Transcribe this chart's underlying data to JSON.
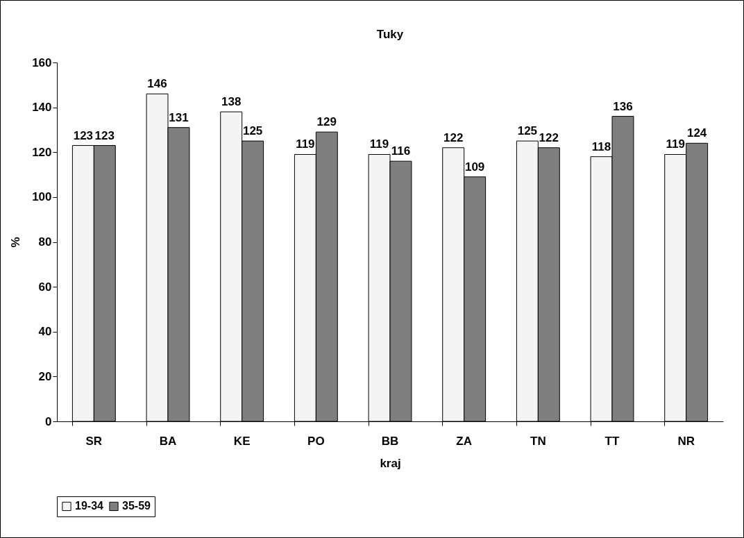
{
  "chart_data": {
    "type": "bar",
    "title": "Tuky",
    "xlabel": "kraj",
    "ylabel": "%",
    "categories": [
      "SR",
      "BA",
      "KE",
      "PO",
      "BB",
      "ZA",
      "TN",
      "TT",
      "NR"
    ],
    "series": [
      {
        "name": "19-34",
        "color": "#f4f4f4",
        "values": [
          123,
          146,
          138,
          119,
          119,
          122,
          125,
          118,
          119
        ]
      },
      {
        "name": "35-59",
        "color": "#7f7f7f",
        "values": [
          123,
          131,
          125,
          129,
          116,
          109,
          122,
          136,
          124
        ]
      }
    ],
    "ylim": [
      0,
      160
    ],
    "yticks": [
      0,
      20,
      40,
      60,
      80,
      100,
      120,
      140,
      160
    ],
    "grid": false,
    "legend": "bottom",
    "data_labels": true
  }
}
